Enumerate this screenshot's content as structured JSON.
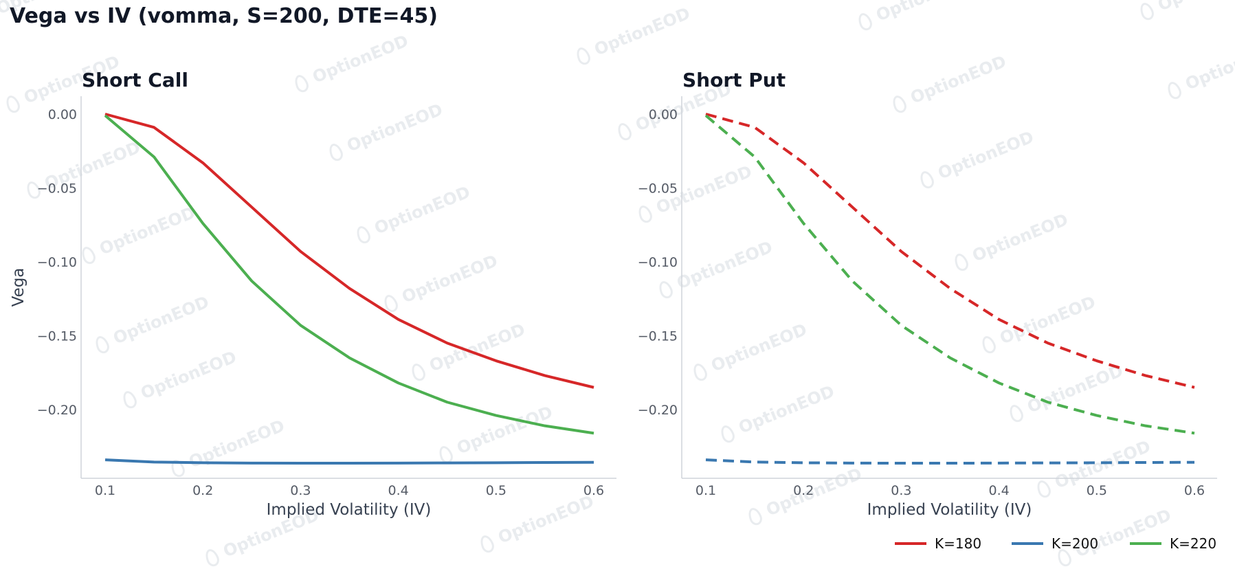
{
  "title": "Vega vs IV (vomma, S=200, DTE=45)",
  "watermark_text": "OptionEOD",
  "colors": {
    "K=180": "#d62728",
    "K=200": "#3a78b0",
    "K=220": "#4caf50",
    "axis": "#cfd4da",
    "text": "#111827"
  },
  "legend": {
    "placement": "bottom-right",
    "entries": [
      "K=180",
      "K=200",
      "K=220"
    ]
  },
  "chart_data": [
    {
      "type": "line",
      "title": "Short Call",
      "xlabel": "Implied Volatility (IV)",
      "ylabel": "Vega",
      "xlim": [
        0.1,
        0.6
      ],
      "ylim": [
        -0.2475,
        0.0125
      ],
      "xticks": [
        "0.1",
        "0.2",
        "0.3",
        "0.4",
        "0.5",
        "0.6"
      ],
      "yticks": [
        "0.00",
        "−0.05",
        "−0.10",
        "−0.15",
        "−0.20"
      ],
      "line_style": "solid",
      "x": [
        0.1,
        0.15,
        0.2,
        0.25,
        0.3,
        0.35,
        0.4,
        0.45,
        0.5,
        0.55,
        0.6
      ],
      "series": [
        {
          "name": "K=180",
          "values": [
            0.0,
            -0.009,
            -0.033,
            -0.063,
            -0.093,
            -0.118,
            -0.139,
            -0.155,
            -0.167,
            -0.177,
            -0.185
          ]
        },
        {
          "name": "K=200",
          "values": [
            -0.234,
            -0.2355,
            -0.236,
            -0.2362,
            -0.2363,
            -0.2363,
            -0.2362,
            -0.2361,
            -0.236,
            -0.2358,
            -0.2357
          ]
        },
        {
          "name": "K=220",
          "values": [
            -0.001,
            -0.029,
            -0.074,
            -0.113,
            -0.143,
            -0.165,
            -0.182,
            -0.195,
            -0.204,
            -0.211,
            -0.216
          ]
        }
      ]
    },
    {
      "type": "line",
      "title": "Short Put",
      "xlabel": "Implied Volatility (IV)",
      "ylabel": "",
      "xlim": [
        0.1,
        0.6
      ],
      "ylim": [
        -0.2475,
        0.0125
      ],
      "xticks": [
        "0.1",
        "0.2",
        "0.3",
        "0.4",
        "0.5",
        "0.6"
      ],
      "yticks": [
        "0.00",
        "−0.05",
        "−0.10",
        "−0.15",
        "−0.20"
      ],
      "line_style": "dashed",
      "x": [
        0.1,
        0.15,
        0.2,
        0.25,
        0.3,
        0.35,
        0.4,
        0.45,
        0.5,
        0.55,
        0.6
      ],
      "series": [
        {
          "name": "K=180",
          "values": [
            0.0,
            -0.009,
            -0.033,
            -0.063,
            -0.093,
            -0.118,
            -0.139,
            -0.155,
            -0.167,
            -0.177,
            -0.185
          ]
        },
        {
          "name": "K=200",
          "values": [
            -0.234,
            -0.2355,
            -0.236,
            -0.2362,
            -0.2363,
            -0.2363,
            -0.2362,
            -0.2361,
            -0.236,
            -0.2358,
            -0.2357
          ]
        },
        {
          "name": "K=220",
          "values": [
            -0.001,
            -0.029,
            -0.074,
            -0.113,
            -0.143,
            -0.165,
            -0.182,
            -0.195,
            -0.204,
            -0.211,
            -0.216
          ]
        }
      ]
    }
  ]
}
